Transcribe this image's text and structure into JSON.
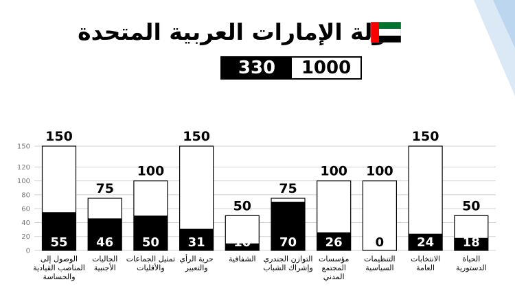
{
  "header": {
    "title": "دولة الإمارات العربية المتحدة",
    "total_score": "1000",
    "achieved_score": "330"
  },
  "colors": {
    "bar_fill": "#000000",
    "bar_background": "#ffffff",
    "grid": "#d0d0d0",
    "flag_green": "#00732F",
    "flag_red": "#FF0000",
    "flag_black": "#000000"
  },
  "chart_data": {
    "type": "bar",
    "ylim": [
      0,
      150
    ],
    "yticks": [
      0,
      20,
      40,
      60,
      80,
      100,
      120,
      150
    ],
    "grid": true,
    "categories": [
      [
        "الوصول إلى",
        "المناصب القيادية",
        "والحساسة"
      ],
      [
        "الجاليات",
        "الأجنبية"
      ],
      [
        "تمثيل الجماعات",
        "والأقليات"
      ],
      [
        "حرية الرأي",
        "والتعبير"
      ],
      [
        "الشفافية"
      ],
      [
        "التوازن الجندري",
        "وإشراك الشباب"
      ],
      [
        "مؤسسات",
        "المجتمع",
        "المدني"
      ],
      [
        "التنظيمات",
        "السياسية"
      ],
      [
        "الانتخابات",
        "العامة"
      ],
      [
        "الحياة",
        "الدستورية"
      ]
    ],
    "series": [
      {
        "values": [
          150,
          75,
          100,
          150,
          50,
          75,
          100,
          100,
          150,
          50
        ]
      },
      {
        "values": [
          55,
          46,
          50,
          31,
          10,
          70,
          26,
          0,
          24,
          18
        ]
      }
    ]
  }
}
